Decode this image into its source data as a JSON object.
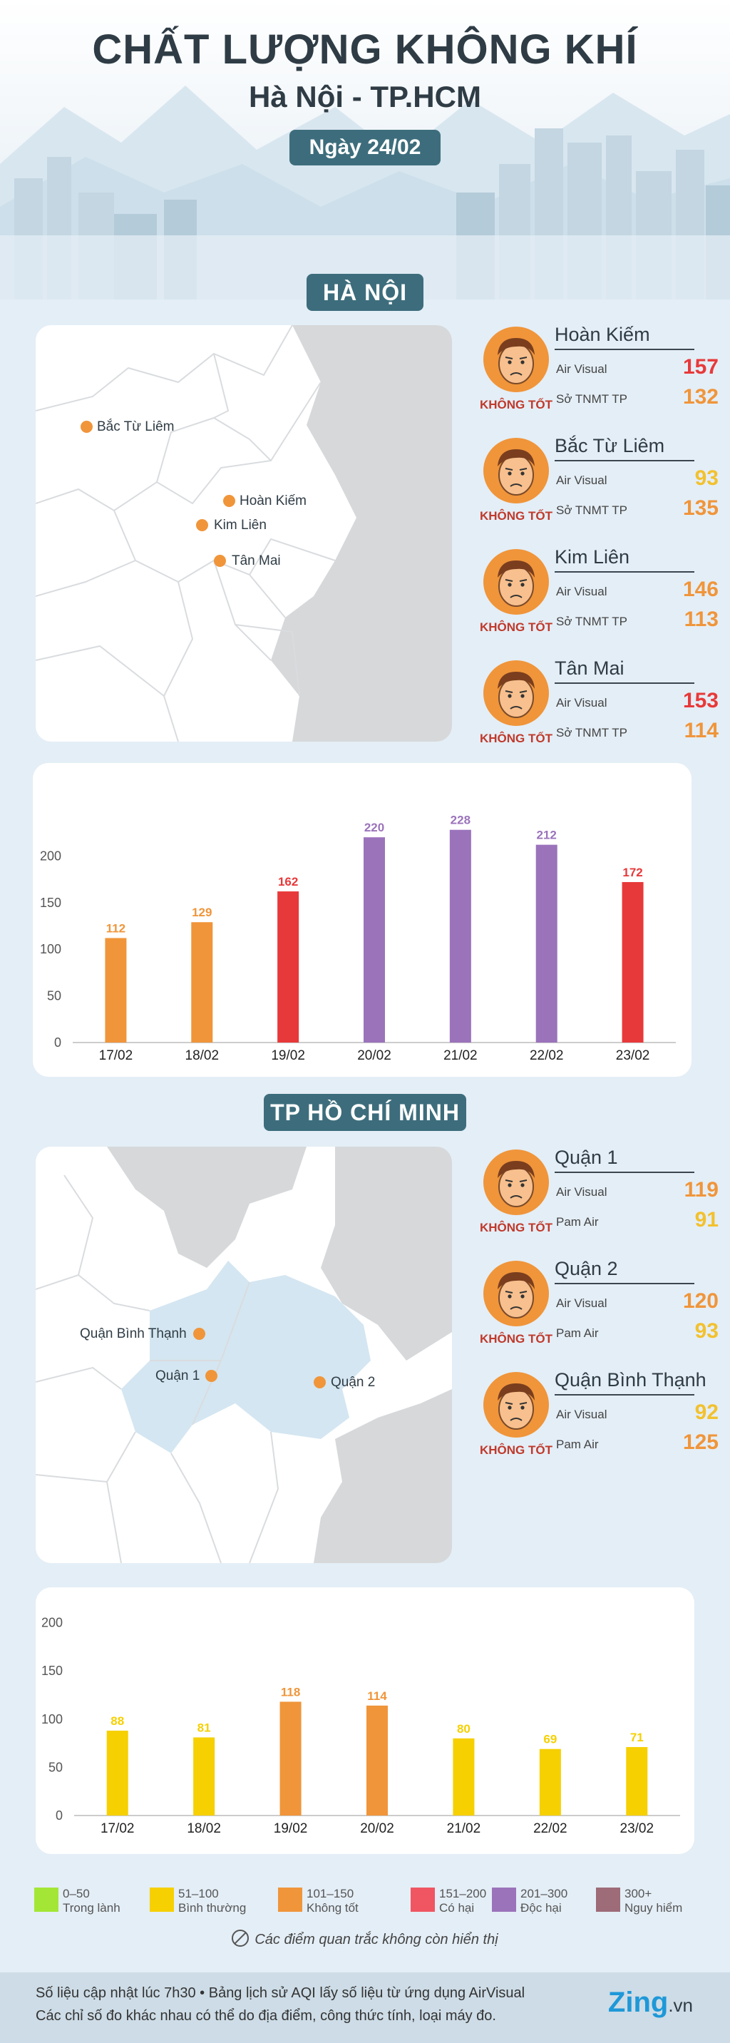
{
  "header": {
    "title": "CHẤT LƯỢNG KHÔNG KHÍ",
    "subtitle": "Hà Nội - TP.HCM",
    "date": "Ngày 24/02"
  },
  "hanoi": {
    "section_title": "HÀ NỘI",
    "map_labels": [
      "Bắc Từ Liêm",
      "Hoàn Kiếm",
      "Kim Liên",
      "Tân Mai"
    ],
    "stations": [
      {
        "name": "Hoàn Kiếm",
        "status": "KHÔNG TỐT",
        "src1": "Air Visual",
        "val1": "157",
        "col1": "#e8393a",
        "src2": "Sở TNMT TP",
        "val2": "132",
        "col2": "#f0953a"
      },
      {
        "name": "Bắc Từ Liêm",
        "status": "KHÔNG TỐT",
        "src1": "Air Visual",
        "val1": "93",
        "col1": "#f2c12e",
        "src2": "Sở TNMT TP",
        "val2": "135",
        "col2": "#f0953a"
      },
      {
        "name": "Kim Liên",
        "status": "KHÔNG TỐT",
        "src1": "Air Visual",
        "val1": "146",
        "col1": "#f0953a",
        "src2": "Sở TNMT TP",
        "val2": "113",
        "col2": "#f0953a"
      },
      {
        "name": "Tân Mai",
        "status": "KHÔNG TỐT",
        "src1": "Air Visual",
        "val1": "153",
        "col1": "#e8393a",
        "src2": "Sở TNMT TP",
        "val2": "114",
        "col2": "#f0953a"
      }
    ]
  },
  "hcm": {
    "section_title": "TP HỒ CHÍ MINH",
    "map_labels": [
      "Quận Bình Thạnh",
      "Quận 1",
      "Quận 2"
    ],
    "stations": [
      {
        "name": "Quận 1",
        "status": "KHÔNG TỐT",
        "src1": "Air Visual",
        "val1": "119",
        "col1": "#f0953a",
        "src2": "Pam Air",
        "val2": "91",
        "col2": "#f2c12e"
      },
      {
        "name": "Quận 2",
        "status": "KHÔNG TỐT",
        "src1": "Air Visual",
        "val1": "120",
        "col1": "#f0953a",
        "src2": "Pam Air",
        "val2": "93",
        "col2": "#f2c12e"
      },
      {
        "name": "Quận Bình Thạnh",
        "status": "KHÔNG TỐT",
        "src1": "Air Visual",
        "val1": "92",
        "col1": "#f2c12e",
        "src2": "Pam Air",
        "val2": "125",
        "col2": "#f0953a"
      }
    ]
  },
  "chart_data": [
    {
      "type": "bar",
      "categories": [
        "17/02",
        "18/02",
        "19/02",
        "20/02",
        "21/02",
        "22/02",
        "23/02"
      ],
      "values": [
        112,
        129,
        162,
        220,
        228,
        212,
        172
      ],
      "colors": [
        "#f0953a",
        "#f0953a",
        "#e8393a",
        "#9b73bb",
        "#9b73bb",
        "#9b73bb",
        "#e8393a"
      ],
      "yticks": [
        0,
        50,
        100,
        150,
        200
      ],
      "ylim": [
        0,
        240
      ],
      "grid": false
    },
    {
      "type": "bar",
      "categories": [
        "17/02",
        "18/02",
        "19/02",
        "20/02",
        "21/02",
        "22/02",
        "23/02"
      ],
      "values": [
        88,
        81,
        118,
        114,
        80,
        69,
        71
      ],
      "colors": [
        "#f6d000",
        "#f6d000",
        "#f0953a",
        "#f0953a",
        "#f6d000",
        "#f6d000",
        "#f6d000"
      ],
      "yticks": [
        0,
        50,
        100,
        150,
        200
      ],
      "ylim": [
        0,
        210
      ],
      "grid": false
    }
  ],
  "legend": [
    {
      "range": "0–50",
      "desc": "Trong lành",
      "color": "#a3e635"
    },
    {
      "range": "51–100",
      "desc": "Bình thường",
      "color": "#f6d000"
    },
    {
      "range": "101–150",
      "desc": "Không tốt",
      "color": "#f0953a"
    },
    {
      "range": "151–200",
      "desc": "Có hại",
      "color": "#f05562"
    },
    {
      "range": "201–300",
      "desc": "Độc hại",
      "color": "#9b73bb"
    },
    {
      "range": "300+",
      "desc": "Nguy hiểm",
      "color": "#9e6b78"
    }
  ],
  "note": "Các điểm quan trắc không còn hiển thị",
  "footer": {
    "line1": "Số liệu cập nhật lúc 7h30 • Bảng lịch sử AQI lấy số liệu từ ứng dụng AirVisual",
    "line2": "Các chỉ số đo khác nhau có thể do địa điểm, công thức tính, loại máy đo.",
    "logo": "Zing",
    "logo_suffix": ".vn"
  }
}
